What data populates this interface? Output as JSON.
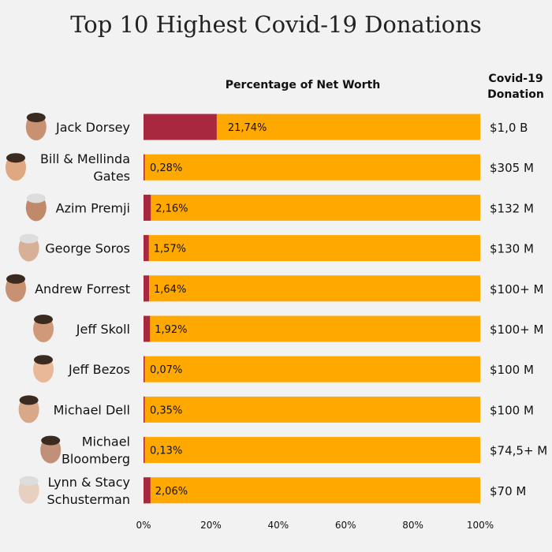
{
  "chart_data": {
    "type": "bar",
    "stacked": true,
    "title": "Top 10 Highest Covid-19 Donations",
    "xlabel": "Percentage of Net Worth",
    "donation_header": "Covid-19 Donation",
    "xlim": [
      0,
      100
    ],
    "x_ticks": [
      "0%",
      "20%",
      "40%",
      "60%",
      "80%",
      "100%"
    ],
    "grid": false,
    "colors": {
      "share": "#a8283f",
      "rest": "#ffa800"
    },
    "categories": [
      "Jack Dorsey",
      "Bill & Mellinda Gates",
      "Azim Premji",
      "George Soros",
      "Andrew Forrest",
      "Jeff Skoll",
      "Jeff Bezos",
      "Michael Dell",
      "Michael Bloomberg",
      "Lynn & Stacy Schusterman"
    ],
    "label_lines": [
      [
        "Jack Dorsey"
      ],
      [
        "Bill & Mellinda",
        "Gates"
      ],
      [
        "Azim Premji"
      ],
      [
        "George Soros"
      ],
      [
        "Andrew Forrest"
      ],
      [
        "Jeff Skoll"
      ],
      [
        "Jeff Bezos"
      ],
      [
        "Michael Dell"
      ],
      [
        "Michael",
        "Bloomberg"
      ],
      [
        "Lynn & Stacy",
        "Schusterman"
      ]
    ],
    "values": [
      21.74,
      0.28,
      2.16,
      1.57,
      1.64,
      1.92,
      0.07,
      0.35,
      0.13,
      2.06
    ],
    "value_labels": [
      "21,74%",
      "0,28%",
      "2,16%",
      "1,57%",
      "1,64%",
      "1,92%",
      "0,07%",
      "0,35%",
      "0,13%",
      "2,06%"
    ],
    "donations": [
      "$1,0 B",
      "$305 M",
      "$132 M",
      "$130 M",
      "$100+ M",
      "$100+ M",
      "$100 M",
      "$100 M",
      "$74,5+ M",
      "$70 M"
    ]
  }
}
